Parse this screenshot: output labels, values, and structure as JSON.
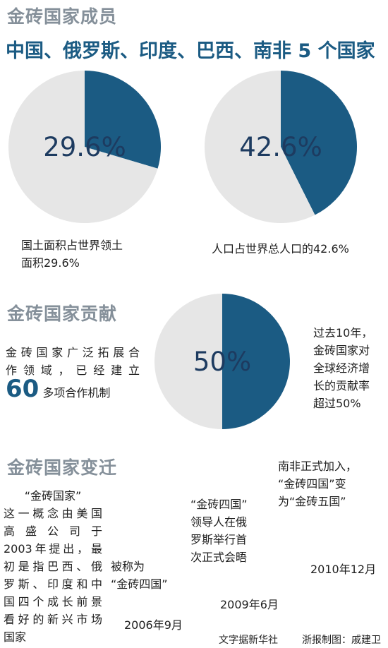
{
  "section1": {
    "title": "金砖国家成员",
    "headline": "中国、俄罗斯、印度、巴西、南非 5 个国家"
  },
  "section2": {
    "title": "金砖国家贡献",
    "left_text_lines": [
      "金砖国家广泛拓展合",
      "作领域，已经建立"
    ],
    "big_number": "60",
    "big_number_suffix": "多项合作机制",
    "right_text_lines": [
      "过去10年，",
      "金砖国家对",
      "全球经济增",
      "长的贡献率",
      "超过50%"
    ]
  },
  "section3": {
    "title": "金砖国家变迁",
    "intro_lines": [
      "“金砖国家”",
      "这一概念由美国",
      "高盛公司于",
      "2003年提出，最",
      "初是指巴西、俄",
      "罗斯、印度和中",
      "国四个成长前景",
      "看好的新兴市场",
      "国家"
    ],
    "event_2006": {
      "text_lines": [
        "被称为",
        "“金砖四国”"
      ],
      "date": "2006年9月"
    },
    "event_2009": {
      "text_lines": [
        "“金砖四国”",
        "领导人在俄",
        "罗斯举行首",
        "次正式会晤"
      ],
      "date": "2009年6月"
    },
    "event_2010": {
      "text_lines": [
        "南非正式加入，",
        "“金砖四国”变",
        "为“金砖五国”"
      ],
      "date": "2010年12月"
    }
  },
  "credits": {
    "source": "文字据新华社",
    "graphic": "浙报制图：戚建卫"
  },
  "colors": {
    "slice": "#1b5b83",
    "rest": "#e6e6e6",
    "label": "#1d3b60",
    "title_gray": "#85909a"
  },
  "chart_data": [
    {
      "type": "pie",
      "slices": [
        {
          "value": 29.6
        },
        {
          "value": 70.4
        }
      ],
      "center_label": "29.6%",
      "caption_lines": [
        "国土面积占世界领土",
        "面积29.6%"
      ]
    },
    {
      "type": "pie",
      "slices": [
        {
          "value": 42.6
        },
        {
          "value": 57.4
        }
      ],
      "center_label": "42.6%",
      "caption": "人口占世界总人口的42.6%"
    },
    {
      "type": "pie",
      "slices": [
        {
          "value": 50
        },
        {
          "value": 50
        }
      ],
      "center_label": "50%"
    }
  ]
}
